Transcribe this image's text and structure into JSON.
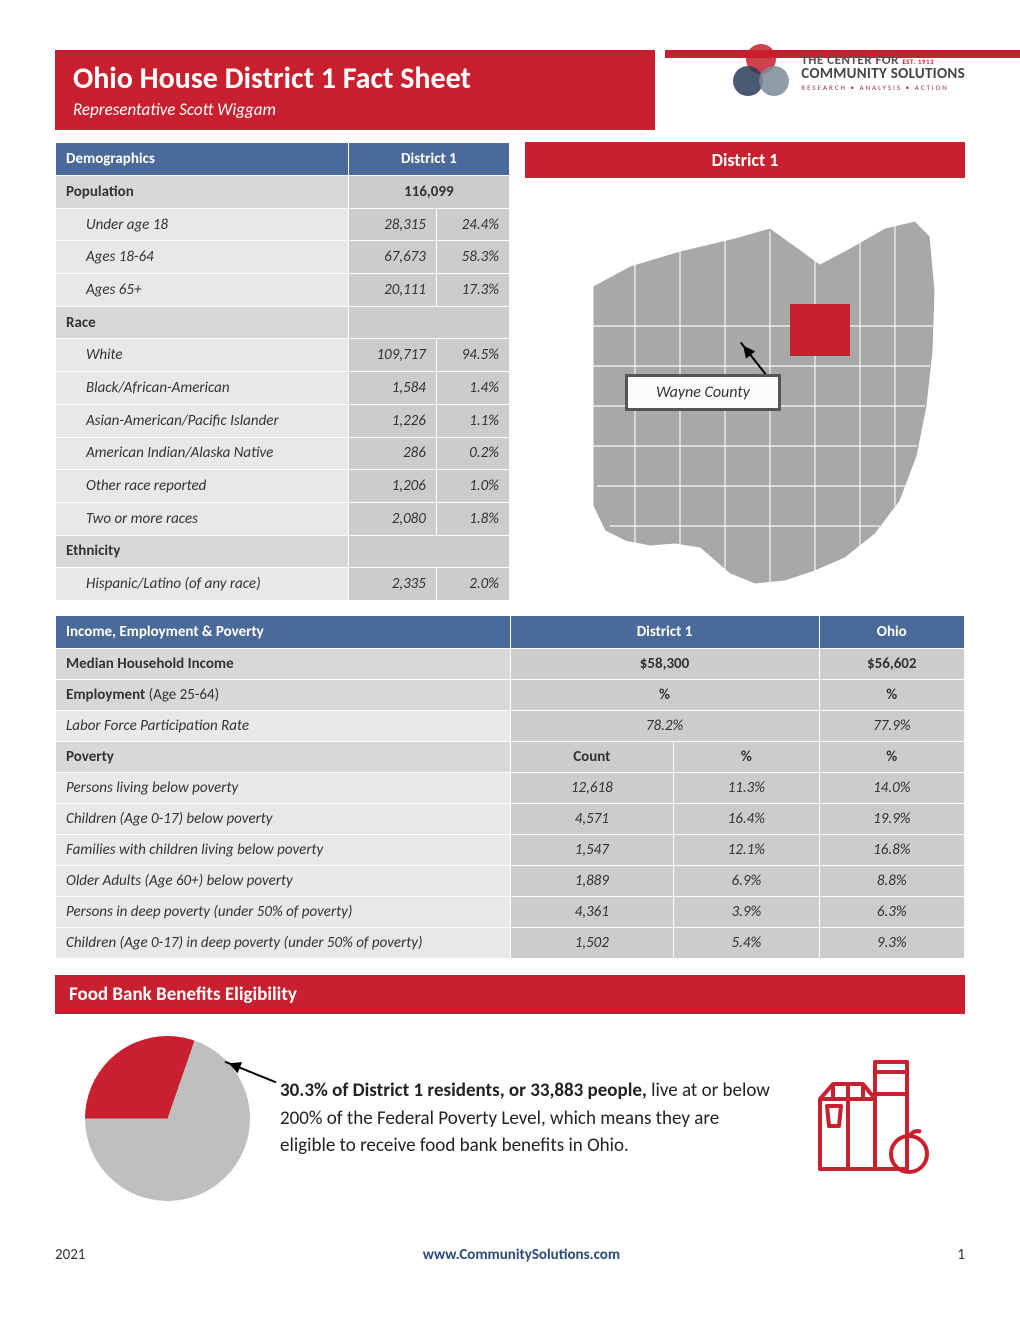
{
  "header": {
    "title": "Ohio House District 1 Fact Sheet",
    "subtitle": "Representative Scott Wiggam",
    "org_line1": "THE CENTER FOR",
    "org_line2": "COMMUNITY SOLUTIONS",
    "org_tag": "RESEARCH • ANALYSIS • ACTION",
    "org_est": "EST. 1913"
  },
  "demographics": {
    "header_label": "Demographics",
    "header_district": "District 1",
    "rows": [
      {
        "type": "section",
        "label": "Population",
        "v1": "116,099",
        "span": true
      },
      {
        "type": "sub",
        "label": "Under age 18",
        "v1": "28,315",
        "v2": "24.4%"
      },
      {
        "type": "sub",
        "label": "Ages 18-64",
        "v1": "67,673",
        "v2": "58.3%"
      },
      {
        "type": "sub",
        "label": "Ages 65+",
        "v1": "20,111",
        "v2": "17.3%"
      },
      {
        "type": "section",
        "label": "Race",
        "v1": "",
        "span": true
      },
      {
        "type": "sub",
        "label": "White",
        "v1": "109,717",
        "v2": "94.5%"
      },
      {
        "type": "sub",
        "label": "Black/African-American",
        "v1": "1,584",
        "v2": "1.4%"
      },
      {
        "type": "sub",
        "label": "Asian-American/Pacific Islander",
        "v1": "1,226",
        "v2": "1.1%"
      },
      {
        "type": "sub",
        "label": "American Indian/Alaska Native",
        "v1": "286",
        "v2": "0.2%"
      },
      {
        "type": "sub",
        "label": "Other race reported",
        "v1": "1,206",
        "v2": "1.0%"
      },
      {
        "type": "sub",
        "label": "Two or more races",
        "v1": "2,080",
        "v2": "1.8%"
      },
      {
        "type": "section",
        "label": "Ethnicity",
        "v1": "",
        "span": true
      },
      {
        "type": "sub",
        "label": "Hispanic/Latino (of any race)",
        "v1": "2,335",
        "v2": "2.0%"
      }
    ]
  },
  "map": {
    "header": "District 1",
    "county_label": "Wayne County",
    "highlight_color": "#c8202f",
    "state_color": "#a8a8a8"
  },
  "income": {
    "header_label": "Income, Employment & Poverty",
    "header_district": "District 1",
    "header_state": "Ohio",
    "rows": [
      {
        "type": "section",
        "label": "Median Household Income",
        "v1": "$58,300",
        "span": true,
        "v3": "$56,602"
      },
      {
        "type": "section",
        "label": "Employment",
        "light": " (Age 25-64)",
        "v1": "%",
        "span": true,
        "v3": "%",
        "subhead": true
      },
      {
        "type": "sub",
        "label": "Labor Force Participation Rate",
        "v1": "78.2%",
        "span": true,
        "v3": "77.9%"
      },
      {
        "type": "section",
        "label": "Poverty",
        "v1": "Count",
        "v2": "%",
        "v3": "%",
        "subhead": true
      },
      {
        "type": "sub",
        "label": "Persons living below poverty",
        "v1": "12,618",
        "v2": "11.3%",
        "v3": "14.0%"
      },
      {
        "type": "sub",
        "label": "Children (Age 0-17) below poverty",
        "v1": "4,571",
        "v2": "16.4%",
        "v3": "19.9%"
      },
      {
        "type": "sub",
        "label": "Families with children living below poverty",
        "v1": "1,547",
        "v2": "12.1%",
        "v3": "16.8%"
      },
      {
        "type": "sub",
        "label": "Older Adults (Age 60+) below poverty",
        "v1": "1,889",
        "v2": "6.9%",
        "v3": "8.8%"
      },
      {
        "type": "sub",
        "label": "Persons in deep poverty (under 50% of poverty)",
        "v1": "4,361",
        "v2": "3.9%",
        "v3": "6.3%"
      },
      {
        "type": "sub",
        "label": "Children (Age 0-17) in deep poverty (under 50% of poverty)",
        "v1": "1,502",
        "v2": "5.4%",
        "v3": "9.3%"
      }
    ]
  },
  "food": {
    "header": "Food Bank Benefits Eligibility",
    "pie_percent": 30.3,
    "pie_color_slice": "#c8202f",
    "pie_color_rest": "#bfbfbf",
    "text_bold1": "30.3%",
    "text_mid1": " of District 1 residents, or ",
    "text_bold2": "33,883 people,",
    "text_rest": " live at or below 200% of the Federal Poverty Level, which means they are eligible to receive food bank benefits in Ohio."
  },
  "footer": {
    "year": "2021",
    "url": "www.CommunitySolutions.com",
    "page": "1"
  }
}
